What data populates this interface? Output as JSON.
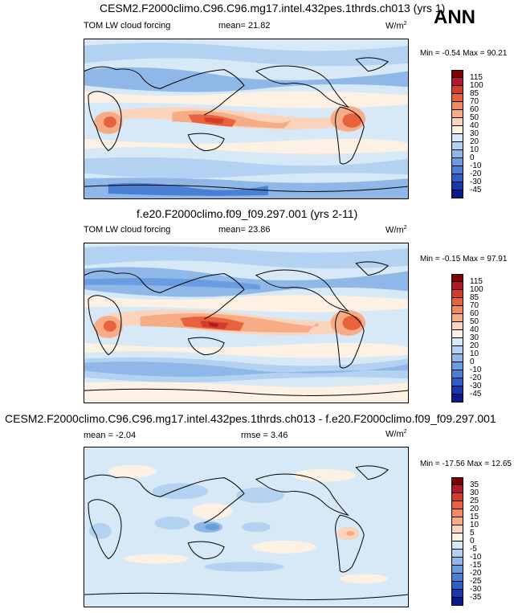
{
  "season": "ANN",
  "panels": [
    {
      "title": "CESM2.F2000climo.C96.C96.mg17.intel.432pes.1thrds.ch013 (yrs 1)",
      "variable": "TOM LW cloud forcing",
      "stat1": "mean=  21.82",
      "stat2": "",
      "units": "W/m",
      "units_sup": "2",
      "minmax": "Min =  -0.54 Max =  90.21",
      "colorbar_labels": [
        "115",
        "100",
        "85",
        "70",
        "60",
        "50",
        "40",
        "30",
        "20",
        "10",
        "0",
        "-10",
        "-20",
        "-30",
        "-45"
      ],
      "colorbar_colors": [
        "#7f0000",
        "#b2182b",
        "#d43d2a",
        "#e8623d",
        "#f08a5d",
        "#f6ad87",
        "#fbd4bb",
        "#fdf1e4",
        "#d7e8f7",
        "#b3d1f0",
        "#8fb8e8",
        "#6a9de0",
        "#4a7fd6",
        "#2e5fc8",
        "#1838b0",
        "#0a1a8a"
      ],
      "chart_data": {
        "type": "heatmap",
        "title": "CESM2.F2000climo.C96.C96.mg17.intel.432pes.1thrds.ch013 (yrs 1)",
        "variable": "TOM LW cloud forcing",
        "units": "W/m2",
        "mean": 21.82,
        "min": -0.54,
        "max": 90.21,
        "contour_levels": [
          -45,
          -30,
          -20,
          -10,
          0,
          10,
          20,
          30,
          40,
          50,
          60,
          70,
          85,
          100,
          115
        ]
      }
    },
    {
      "title": "f.e20.F2000climo.f09_f09.297.001 (yrs 2-11)",
      "variable": "TOM LW cloud forcing",
      "stat1": "mean=  23.86",
      "stat2": "",
      "units": "W/m",
      "units_sup": "2",
      "minmax": "Min =  -0.15 Max =  97.91",
      "colorbar_labels": [
        "115",
        "100",
        "85",
        "70",
        "60",
        "50",
        "40",
        "30",
        "20",
        "10",
        "0",
        "-10",
        "-20",
        "-30",
        "-45"
      ],
      "colorbar_colors": [
        "#7f0000",
        "#b2182b",
        "#d43d2a",
        "#e8623d",
        "#f08a5d",
        "#f6ad87",
        "#fbd4bb",
        "#fdf1e4",
        "#d7e8f7",
        "#b3d1f0",
        "#8fb8e8",
        "#6a9de0",
        "#4a7fd6",
        "#2e5fc8",
        "#1838b0",
        "#0a1a8a"
      ],
      "chart_data": {
        "type": "heatmap",
        "title": "f.e20.F2000climo.f09_f09.297.001 (yrs 2-11)",
        "variable": "TOM LW cloud forcing",
        "units": "W/m2",
        "mean": 23.86,
        "min": -0.15,
        "max": 97.91,
        "contour_levels": [
          -45,
          -30,
          -20,
          -10,
          0,
          10,
          20,
          30,
          40,
          50,
          60,
          70,
          85,
          100,
          115
        ]
      }
    },
    {
      "title": "CESM2.F2000climo.C96.C96.mg17.intel.432pes.1thrds.ch013 - f.e20.F2000climo.f09_f09.297.001",
      "variable": "",
      "stat1": "mean =  -2.04",
      "stat2": "rmse =  3.46",
      "units": "W/m",
      "units_sup": "2",
      "minmax": "Min = -17.56 Max =  12.65",
      "colorbar_labels": [
        "35",
        "30",
        "25",
        "20",
        "15",
        "10",
        "5",
        "0",
        "-5",
        "-10",
        "-15",
        "-20",
        "-25",
        "-30",
        "-35"
      ],
      "colorbar_colors": [
        "#7f0000",
        "#b2182b",
        "#d43d2a",
        "#e8623d",
        "#f08a5d",
        "#f6ad87",
        "#fbd4bb",
        "#fdf1e4",
        "#d7e8f7",
        "#b3d1f0",
        "#8fb8e8",
        "#6a9de0",
        "#4a7fd6",
        "#2e5fc8",
        "#1838b0",
        "#0a1a8a"
      ],
      "chart_data": {
        "type": "heatmap",
        "title": "CESM2.F2000climo.C96.C96.mg17.intel.432pes.1thrds.ch013 - f.e20.F2000climo.f09_f09.297.001",
        "units": "W/m2",
        "mean": -2.04,
        "rmse": 3.46,
        "min": -17.56,
        "max": 12.65,
        "contour_levels": [
          -35,
          -30,
          -25,
          -20,
          -15,
          -10,
          -5,
          0,
          5,
          10,
          15,
          20,
          25,
          30,
          35
        ]
      }
    }
  ]
}
